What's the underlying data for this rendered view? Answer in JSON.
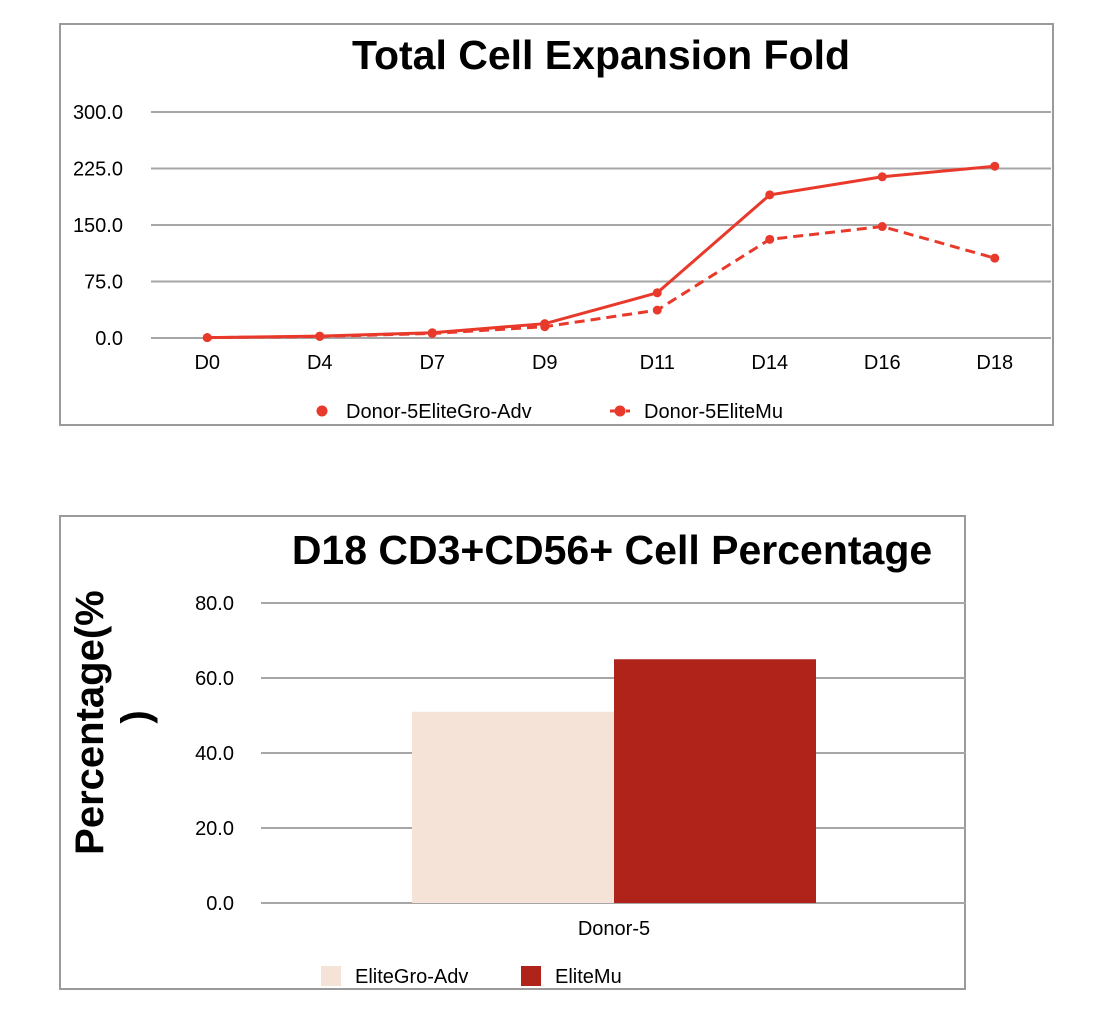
{
  "chart_data": [
    {
      "type": "line",
      "title": "Total Cell Expansion Fold",
      "xlabel": "",
      "ylabel": "",
      "categories": [
        "D0",
        "D4",
        "D7",
        "D9",
        "D11",
        "D14",
        "D16",
        "D18"
      ],
      "ylim": [
        0,
        300
      ],
      "yticks": [
        "0.0",
        "75.0",
        "150.0",
        "225.0",
        "300.0"
      ],
      "grid": true,
      "legend_position": "bottom",
      "series": [
        {
          "name": "Donor-5EliteGro-Adv",
          "values": [
            0.5,
            2.5,
            7,
            19,
            60,
            190,
            214,
            228
          ],
          "style": "solid",
          "color": "#e8392b"
        },
        {
          "name": "Donor-5EliteMu",
          "values": [
            0.5,
            2,
            6,
            15,
            37,
            131,
            148,
            106
          ],
          "style": "dashed",
          "color": "#e8392b"
        }
      ]
    },
    {
      "type": "bar",
      "title": "D18 CD3+CD56+ Cell Percentage",
      "xlabel": "",
      "ylabel": "Percentage(%)",
      "categories": [
        "Donor-5"
      ],
      "ylim": [
        0,
        80
      ],
      "yticks": [
        "0.0",
        "20.0",
        "40.0",
        "60.0",
        "80.0"
      ],
      "grid": true,
      "legend_position": "bottom-left",
      "series": [
        {
          "name": "EliteGro-Adv",
          "values": [
            51
          ],
          "color": "#f5e3d8"
        },
        {
          "name": "EliteMu",
          "values": [
            65
          ],
          "color": "#b0231a"
        }
      ]
    }
  ]
}
